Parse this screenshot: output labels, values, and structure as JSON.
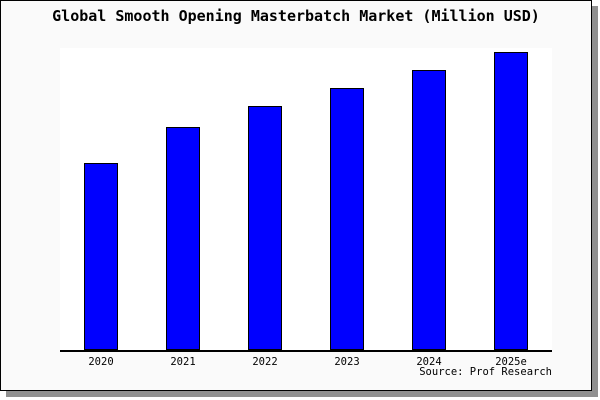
{
  "chart_data": {
    "type": "bar",
    "title": "Global Smooth Opening Masterbatch Market (Million USD)",
    "categories": [
      "2020",
      "2021",
      "2022",
      "2023",
      "2024",
      "2025e"
    ],
    "values": [
      63,
      75,
      82,
      88,
      94,
      100
    ],
    "xlabel": "",
    "ylabel": "",
    "ylim": [
      0,
      101.5
    ],
    "grid": false,
    "legend": false,
    "y_axis_labels_visible": false,
    "source": "Source: Prof Research"
  },
  "colors": {
    "bar_fill": "#0000ff",
    "bar_border": "#000000",
    "figure_bg": "#fafafa",
    "plot_bg": "#ffffff",
    "axis": "#000000",
    "frame_border": "#000000",
    "shadow": "#909090",
    "text": "#000000"
  }
}
